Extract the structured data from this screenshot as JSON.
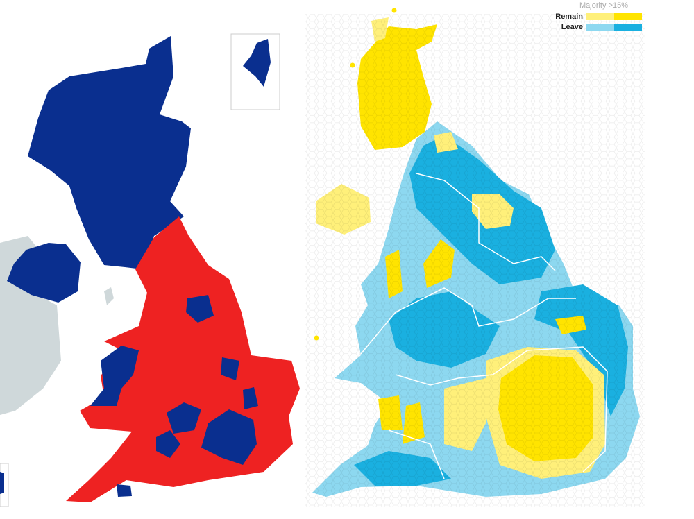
{
  "legend": {
    "title": "Majority >15%",
    "items": [
      {
        "label": "Remain",
        "colors": [
          "#fff07a",
          "#ffe400"
        ]
      },
      {
        "label": "Leave",
        "colors": [
          "#8dd8f0",
          "#1ab0e0"
        ]
      }
    ]
  }
}
